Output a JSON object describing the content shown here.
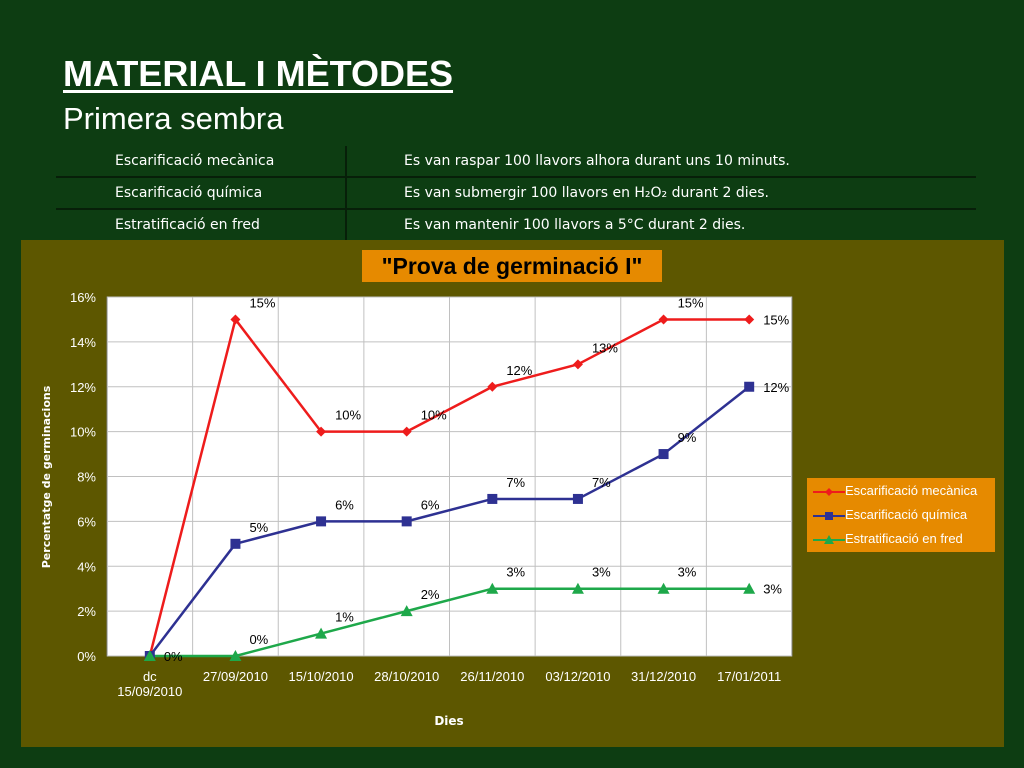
{
  "header": {
    "title": "MATERIAL I MÈTODES",
    "subtitle": "Primera sembra"
  },
  "methods_table": [
    {
      "method": "Escarificació mecànica",
      "description": "Es van raspar 100 llavors alhora durant uns 10 minuts."
    },
    {
      "method": "Escarificació química",
      "description": "Es van submergir 100 llavors en H₂O₂ durant 2 dies."
    },
    {
      "method": "Estratificació en fred",
      "description": "Es van mantenir 100 llavors a 5°C durant 2 dies."
    }
  ],
  "chart_data": {
    "type": "line",
    "title": "\"Prova de germinació I\"",
    "xlabel": "Dies",
    "ylabel": "Percentatge de germinacions",
    "categories": [
      [
        "dc",
        "15/09/2010"
      ],
      [
        "27/09/2010"
      ],
      [
        "15/10/2010"
      ],
      [
        "28/10/2010"
      ],
      [
        "26/11/2010"
      ],
      [
        "03/12/2010"
      ],
      [
        "31/12/2010"
      ],
      [
        "17/01/2011"
      ]
    ],
    "ylim": [
      0,
      16
    ],
    "yticks": [
      "0%",
      "2%",
      "4%",
      "6%",
      "8%",
      "10%",
      "12%",
      "14%",
      "16%"
    ],
    "grid": true,
    "legend_position": "right",
    "series": [
      {
        "name": "Escarificació mecànica",
        "color": "#ee1c1c",
        "marker": "diamond",
        "values": [
          0,
          15,
          10,
          10,
          12,
          13,
          15,
          15
        ],
        "labels": [
          "",
          "15%",
          "10%",
          "10%",
          "12%",
          "13%",
          "15%",
          "15%"
        ]
      },
      {
        "name": "Escarificació química",
        "color": "#2e3192",
        "marker": "square",
        "values": [
          0,
          5,
          6,
          6,
          7,
          7,
          9,
          12
        ],
        "labels": [
          "",
          "5%",
          "6%",
          "6%",
          "7%",
          "7%",
          "9%",
          "12%"
        ]
      },
      {
        "name": "Estratificació en fred",
        "color": "#1ea84a",
        "marker": "triangle",
        "values": [
          0,
          0,
          1,
          2,
          3,
          3,
          3,
          3
        ],
        "labels": [
          "0%",
          "0%",
          "1%",
          "2%",
          "3%",
          "3%",
          "3%",
          "3%"
        ]
      }
    ]
  }
}
